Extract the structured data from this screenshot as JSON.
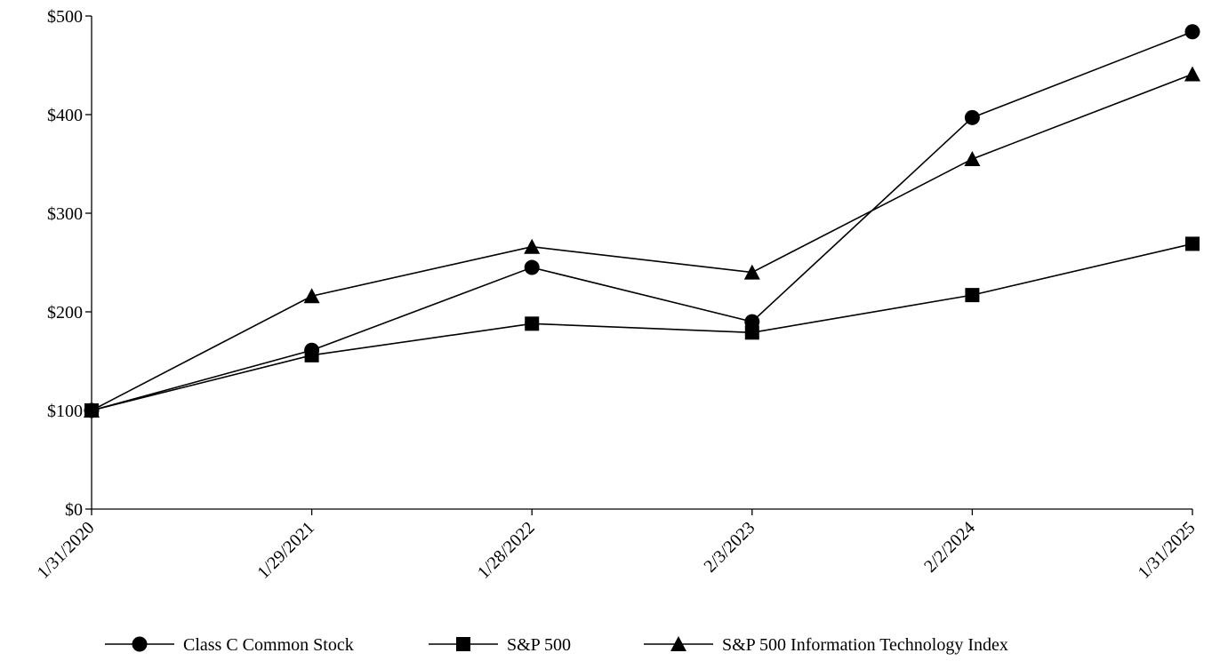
{
  "chart_data": {
    "type": "line",
    "title": "",
    "xlabel": "",
    "ylabel": "",
    "categories": [
      "1/31/2020",
      "1/29/2021",
      "1/28/2022",
      "2/3/2023",
      "2/2/2024",
      "1/31/2025"
    ],
    "ylim": [
      0,
      500
    ],
    "yticks": [
      0,
      100,
      200,
      300,
      400,
      500
    ],
    "ytick_labels": [
      "$0",
      "$100",
      "$200",
      "$300",
      "$400",
      "$500"
    ],
    "grid": false,
    "legend_position": "bottom",
    "series": [
      {
        "name": "Class C Common Stock",
        "marker": "circle",
        "values": [
          100,
          161,
          245,
          190,
          397,
          484
        ]
      },
      {
        "name": "S&P 500",
        "marker": "square",
        "values": [
          100,
          156,
          188,
          179,
          217,
          269
        ]
      },
      {
        "name": "S&P 500 Information Technology Index",
        "marker": "triangle",
        "values": [
          100,
          216,
          266,
          240,
          355,
          441
        ]
      }
    ],
    "line_color": "#000000"
  }
}
